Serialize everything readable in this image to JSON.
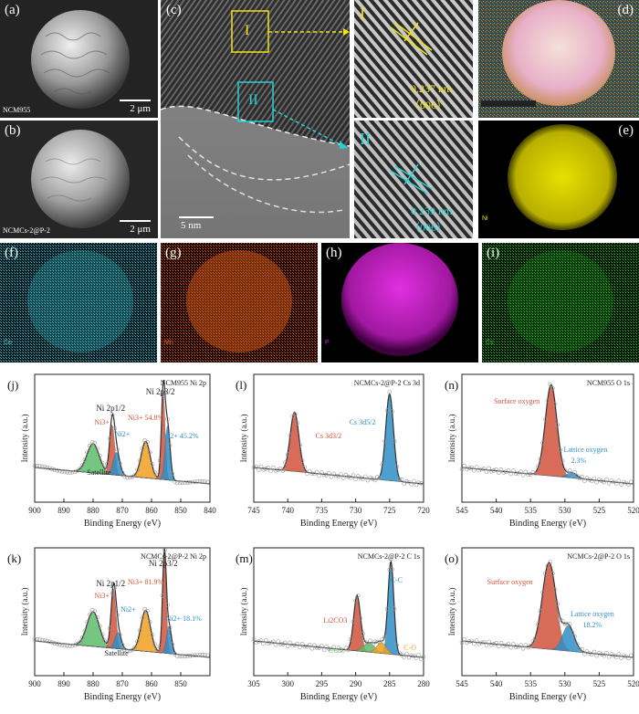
{
  "panels": {
    "a": {
      "label": "(a)",
      "caption": "NCM955",
      "scale": "2 μm"
    },
    "b": {
      "label": "(b)",
      "caption": "NCMCs-2@P-2",
      "scale": "2 μm"
    },
    "c": {
      "label": "(c)",
      "scale": "5 nm",
      "region1": "I",
      "region2": "II"
    },
    "c1": {
      "roman": "I",
      "spacing": "0.237 nm",
      "plane": "（006）"
    },
    "c2": {
      "roman": "II",
      "spacing": "0.239 nm",
      "plane": "（006）"
    },
    "d": {
      "label": "(d)"
    },
    "e": {
      "label": "(e)",
      "element": "Ni"
    },
    "f": {
      "label": "(f)",
      "element": "Co"
    },
    "g": {
      "label": "(g)",
      "element": "Mn"
    },
    "h": {
      "label": "(h)",
      "element": "P"
    },
    "i": {
      "label": "(i)",
      "element": "Cs"
    }
  },
  "colors": {
    "ni": "#e8e000",
    "co": "#3fc6d8",
    "mn": "#e0601c",
    "p": "#d020d0",
    "cs": "#2ec42e",
    "red_peak": "#d2533c",
    "blue_peak": "#2e8fc8",
    "green_peak": "#5cbd6a",
    "orange_peak": "#f0a020",
    "cyan": "#23d3d3",
    "yellow": "#f2e40e"
  },
  "chart_data": [
    {
      "id": "j",
      "type": "line",
      "panel_label": "(j)",
      "title": "NCM955 Ni 2p",
      "xlabel": "Binding Energy (eV)",
      "ylabel": "Intensity (a.u.)",
      "xlim": [
        900,
        840
      ],
      "xticks": [
        900,
        890,
        880,
        870,
        860,
        850,
        840
      ],
      "peaks": [
        {
          "name": "Ni 2p1/2",
          "center": 873.5
        },
        {
          "name": "Ni 2p3/2",
          "center": 855.8
        }
      ],
      "annotations": [
        "Ni 2p1/2",
        "Ni 2p3/2",
        "Ni3+",
        "Ni2+",
        "Ni3+ 54.8%",
        "Ni2+ 45.2%",
        "Satellite"
      ]
    },
    {
      "id": "k",
      "type": "line",
      "panel_label": "(k)",
      "title": "NCMCs-2@P-2 Ni 2p",
      "xlabel": "Binding Energy (eV)",
      "ylabel": "Intensity (a.u.)",
      "xlim": [
        900,
        840
      ],
      "xticks": [
        900,
        890,
        880,
        870,
        860,
        850
      ],
      "peaks": [
        {
          "name": "Ni 2p1/2",
          "center": 873.2
        },
        {
          "name": "Ni 2p3/2",
          "center": 855.6
        }
      ],
      "annotations": [
        "Ni 2p1/2",
        "Ni 2p3/2",
        "Ni3+",
        "Ni2+",
        "Ni3+ 81.9%",
        "Ni2+ 18.1%",
        "Satellite"
      ]
    },
    {
      "id": "l",
      "type": "line",
      "panel_label": "(l)",
      "title": "NCMCs-2@P-2 Cs 3d",
      "xlabel": "Binding Energy (eV)",
      "ylabel": "Intensity (a.u.)",
      "xlim": [
        745,
        720
      ],
      "xticks": [
        745,
        740,
        735,
        730,
        725,
        720
      ],
      "peaks": [
        {
          "name": "Cs 3d3/2",
          "center": 739.0
        },
        {
          "name": "Cs 3d5/2",
          "center": 725.0
        }
      ],
      "annotations": [
        "Cs 3d3/2",
        "Cs 3d5/2"
      ]
    },
    {
      "id": "m",
      "type": "line",
      "panel_label": "(m)",
      "title": "NCMCs-2@P-2 C 1s",
      "xlabel": "Binding Energy (eV)",
      "ylabel": "Intensity (a.u.)",
      "xlim": [
        305,
        280
      ],
      "xticks": [
        305,
        300,
        295,
        290,
        285,
        280
      ],
      "peaks": [
        {
          "name": "Li2CO3",
          "center": 289.8
        },
        {
          "name": "C=O",
          "center": 288.0
        },
        {
          "name": "C-C",
          "center": 284.8
        },
        {
          "name": "C-O",
          "center": 286.0
        }
      ],
      "annotations": [
        "Li2CO3",
        "C=O",
        "C-C",
        "C-O"
      ]
    },
    {
      "id": "n",
      "type": "line",
      "panel_label": "(n)",
      "title": "NCM955 O 1s",
      "xlabel": "Binding Energy (eV)",
      "ylabel": "Intensity (a.u.)",
      "xlim": [
        545,
        520
      ],
      "xticks": [
        545,
        540,
        535,
        530,
        525,
        520
      ],
      "peaks": [
        {
          "name": "Surface oxygen",
          "center": 532.0
        },
        {
          "name": "Lattice oxygen",
          "center": 529.0
        }
      ],
      "annotations": [
        "Surface oxygen",
        "Lattice oxygen",
        "2.3%"
      ]
    },
    {
      "id": "o",
      "type": "line",
      "panel_label": "(o)",
      "title": "NCMCs-2@P-2 O 1s",
      "xlabel": "Binding Energy (eV)",
      "ylabel": "Intensity (a.u.)",
      "xlim": [
        545,
        520
      ],
      "xticks": [
        545,
        540,
        535,
        530,
        525,
        520
      ],
      "peaks": [
        {
          "name": "Surface oxygen",
          "center": 532.3
        },
        {
          "name": "Lattice oxygen",
          "center": 529.0
        }
      ],
      "annotations": [
        "Surface oxygen",
        "Lattice oxygen",
        "18.2%"
      ]
    }
  ]
}
